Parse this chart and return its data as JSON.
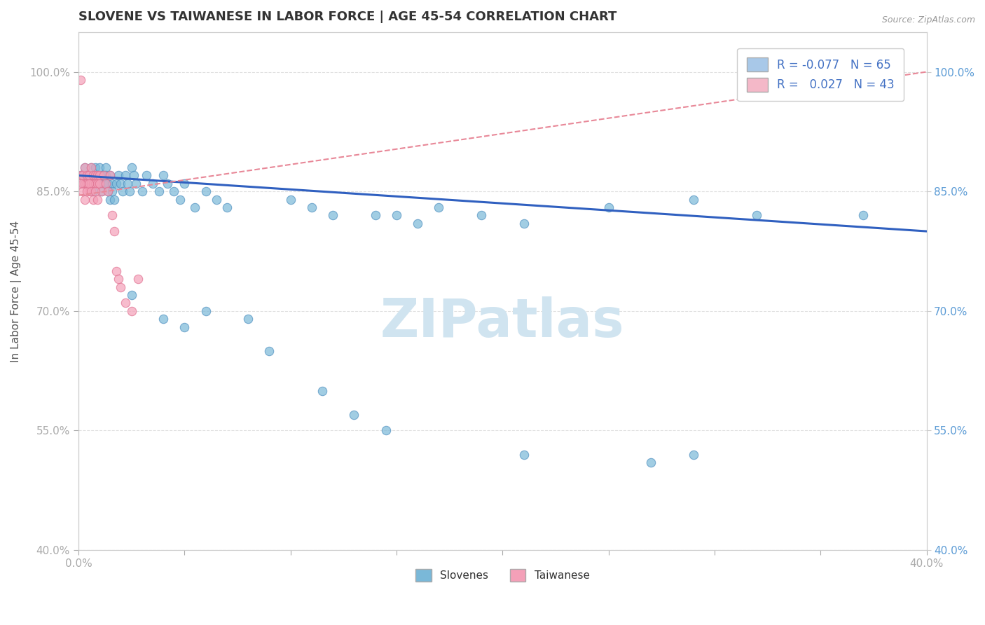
{
  "title": "SLOVENE VS TAIWANESE IN LABOR FORCE | AGE 45-54 CORRELATION CHART",
  "source_text": "Source: ZipAtlas.com",
  "ylabel": "In Labor Force | Age 45-54",
  "xlim": [
    0.0,
    0.4
  ],
  "ylim": [
    0.4,
    1.05
  ],
  "ytick_labels": [
    "40.0%",
    "55.0%",
    "70.0%",
    "85.0%",
    "100.0%"
  ],
  "ytick_values": [
    0.4,
    0.55,
    0.7,
    0.85,
    1.0
  ],
  "legend_r_entries": [
    {
      "label_r": "-0.077",
      "label_n": "65",
      "color": "#a8c8e8"
    },
    {
      "label_r": " 0.027",
      "label_n": "43",
      "color": "#f4b8c8"
    }
  ],
  "watermark": "ZIPatlas",
  "slovene_color": "#7ab8d8",
  "taiwanese_color": "#f4a0b8",
  "slovene_edge_color": "#5090c0",
  "taiwanese_edge_color": "#e07090",
  "slovene_trend_color": "#3060c0",
  "taiwanese_trend_color": "#e88898",
  "slovene_x": [
    0.001,
    0.002,
    0.003,
    0.004,
    0.005,
    0.006,
    0.006,
    0.007,
    0.007,
    0.008,
    0.008,
    0.009,
    0.01,
    0.01,
    0.011,
    0.011,
    0.012,
    0.012,
    0.013,
    0.013,
    0.014,
    0.014,
    0.015,
    0.015,
    0.016,
    0.016,
    0.017,
    0.018,
    0.019,
    0.02,
    0.021,
    0.022,
    0.023,
    0.024,
    0.025,
    0.026,
    0.027,
    0.03,
    0.032,
    0.035,
    0.038,
    0.04,
    0.042,
    0.045,
    0.048,
    0.05,
    0.055,
    0.06,
    0.065,
    0.07,
    0.08,
    0.09,
    0.1,
    0.11,
    0.12,
    0.14,
    0.15,
    0.16,
    0.17,
    0.19,
    0.21,
    0.25,
    0.29,
    0.32,
    0.37
  ],
  "slovene_y": [
    0.87,
    0.86,
    0.88,
    0.86,
    0.87,
    0.88,
    0.86,
    0.87,
    0.85,
    0.88,
    0.86,
    0.87,
    0.88,
    0.86,
    0.87,
    0.85,
    0.87,
    0.86,
    0.88,
    0.87,
    0.86,
    0.85,
    0.87,
    0.84,
    0.86,
    0.85,
    0.84,
    0.86,
    0.87,
    0.86,
    0.85,
    0.87,
    0.86,
    0.85,
    0.88,
    0.87,
    0.86,
    0.85,
    0.87,
    0.86,
    0.85,
    0.87,
    0.86,
    0.85,
    0.84,
    0.86,
    0.83,
    0.85,
    0.84,
    0.83,
    0.69,
    0.65,
    0.84,
    0.83,
    0.82,
    0.82,
    0.82,
    0.81,
    0.83,
    0.82,
    0.81,
    0.83,
    0.84,
    0.82,
    0.82
  ],
  "slovene_y_outliers_x": [
    0.025,
    0.04,
    0.05,
    0.06,
    0.115,
    0.13,
    0.145,
    0.21,
    0.27,
    0.29
  ],
  "slovene_y_outliers_y": [
    0.72,
    0.69,
    0.68,
    0.7,
    0.6,
    0.57,
    0.55,
    0.52,
    0.51,
    0.52
  ],
  "taiwanese_x": [
    0.001,
    0.001,
    0.002,
    0.002,
    0.003,
    0.003,
    0.004,
    0.004,
    0.005,
    0.005,
    0.006,
    0.006,
    0.007,
    0.007,
    0.008,
    0.008,
    0.009,
    0.009,
    0.01,
    0.01,
    0.011,
    0.012,
    0.013,
    0.014,
    0.015,
    0.016,
    0.017,
    0.018,
    0.019,
    0.02,
    0.022,
    0.025,
    0.028,
    0.001,
    0.002,
    0.003,
    0.004,
    0.005,
    0.006,
    0.007,
    0.008,
    0.009,
    0.37
  ],
  "taiwanese_y": [
    0.99,
    0.87,
    0.86,
    0.87,
    0.88,
    0.86,
    0.87,
    0.86,
    0.85,
    0.87,
    0.88,
    0.86,
    0.87,
    0.86,
    0.86,
    0.87,
    0.87,
    0.86,
    0.87,
    0.86,
    0.85,
    0.87,
    0.86,
    0.85,
    0.87,
    0.82,
    0.8,
    0.75,
    0.74,
    0.73,
    0.71,
    0.7,
    0.74,
    0.86,
    0.85,
    0.84,
    0.85,
    0.86,
    0.85,
    0.84,
    0.85,
    0.84,
    1.0
  ],
  "slovene_trend_x": [
    0.0,
    0.4
  ],
  "slovene_trend_y": [
    0.87,
    0.8
  ],
  "taiwanese_trend_x": [
    0.0,
    0.4
  ],
  "taiwanese_trend_y": [
    0.845,
    1.0
  ],
  "background_color": "#ffffff",
  "grid_color": "#e0e0e0",
  "title_fontsize": 13,
  "axis_label_fontsize": 11,
  "tick_fontsize": 11,
  "tick_color": "#5b9bd5",
  "watermark_color": "#d0e4f0",
  "watermark_fontsize": 55
}
